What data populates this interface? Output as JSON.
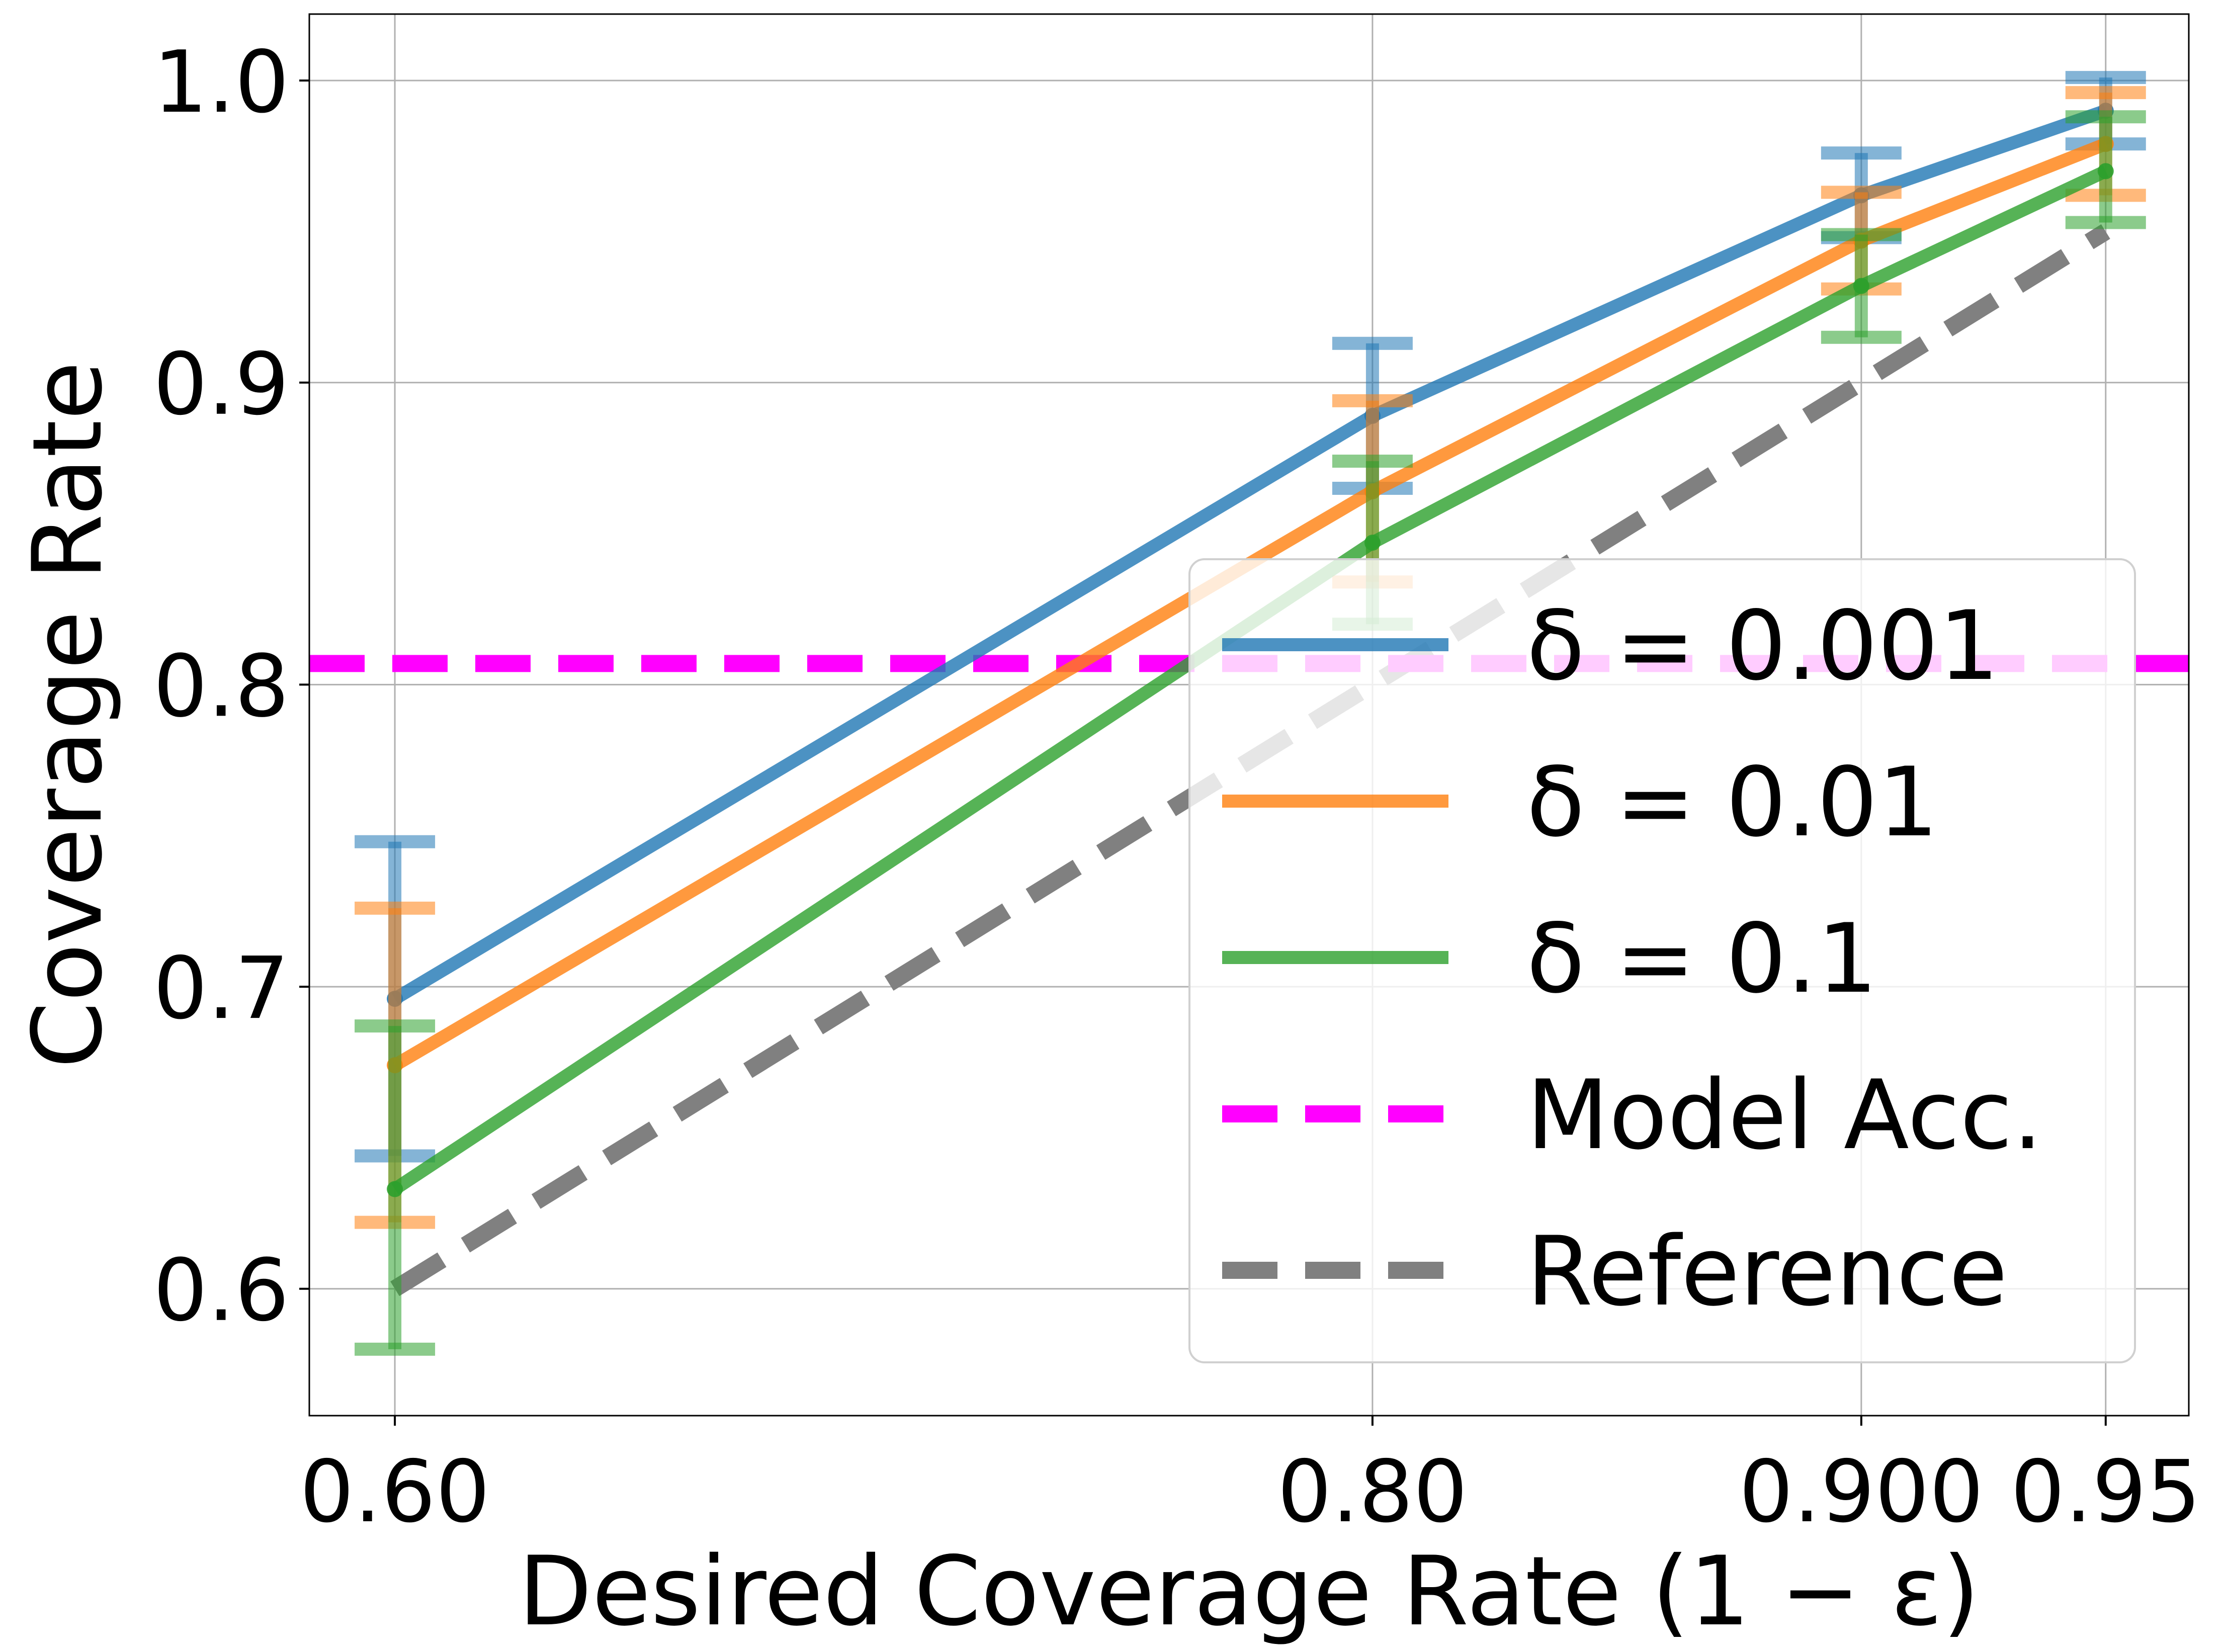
{
  "chart_data": {
    "type": "line",
    "title": "",
    "xlabel": "Desired Coverage Rate (1 − ε)",
    "ylabel": "Coverage Rate",
    "x": [
      0.6,
      0.8,
      0.9,
      0.95
    ],
    "x_tick_labels": [
      "0.60",
      "0.80",
      "0.900",
      "0.95"
    ],
    "y_ticks": [
      0.6,
      0.7,
      0.8,
      0.9,
      1.0
    ],
    "y_tick_labels": [
      "0.6",
      "0.7",
      "0.8",
      "0.9",
      "1.0"
    ],
    "xlim": [
      0.5825,
      0.967
    ],
    "ylim": [
      0.558,
      1.022
    ],
    "grid": true,
    "legend_position": "lower-right",
    "series": [
      {
        "name": "δ = 0.001",
        "color": "#1f77b4",
        "values": [
          0.696,
          0.889,
          0.962,
          0.99
        ],
        "err_low": [
          0.644,
          0.865,
          0.948,
          0.979
        ],
        "err_high": [
          0.748,
          0.913,
          0.976,
          1.001
        ]
      },
      {
        "name": "δ = 0.01",
        "color": "#ff7f0e",
        "values": [
          0.674,
          0.864,
          0.947,
          0.979
        ],
        "err_low": [
          0.622,
          0.834,
          0.931,
          0.962
        ],
        "err_high": [
          0.726,
          0.894,
          0.963,
          0.996
        ]
      },
      {
        "name": "δ = 0.1",
        "color": "#2ca02c",
        "values": [
          0.633,
          0.847,
          0.932,
          0.97
        ],
        "err_low": [
          0.58,
          0.82,
          0.915,
          0.953
        ],
        "err_high": [
          0.687,
          0.874,
          0.949,
          0.988
        ]
      }
    ],
    "model_accuracy": {
      "name": "Model Acc.",
      "value": 0.807,
      "color": "#ff00ff"
    },
    "reference": {
      "name": "Reference",
      "color": "#808080",
      "x": [
        0.6,
        0.95
      ],
      "values": [
        0.6,
        0.95
      ]
    }
  }
}
